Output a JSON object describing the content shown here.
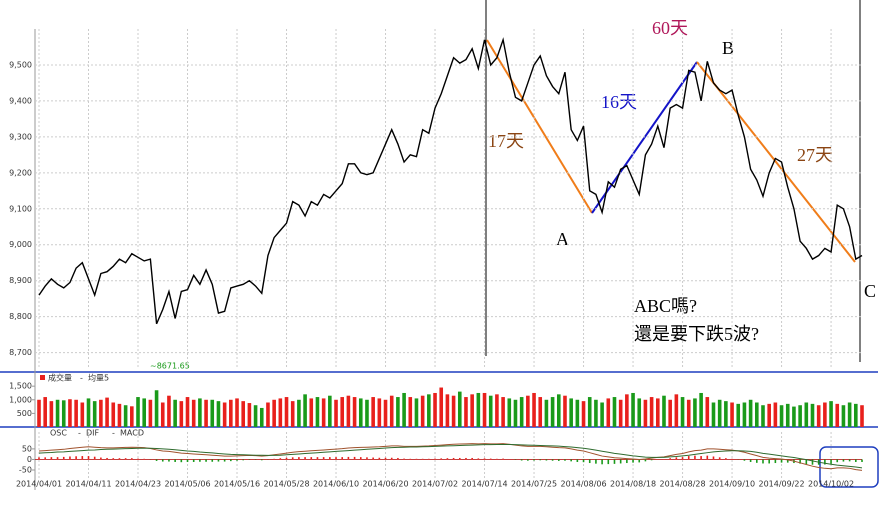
{
  "chart_data": [
    {
      "type": "line",
      "color": "#000000",
      "categories": [
        "2014/04/01",
        null,
        null,
        null,
        null,
        null,
        null,
        null,
        "2014/04/11",
        null,
        null,
        null,
        null,
        null,
        null,
        null,
        "2014/04/23",
        null,
        null,
        null,
        null,
        null,
        null,
        null,
        "2014/05/06",
        null,
        null,
        null,
        null,
        null,
        null,
        null,
        "2014/05/16",
        null,
        null,
        null,
        null,
        null,
        null,
        null,
        "2014/05/28",
        null,
        null,
        null,
        null,
        null,
        null,
        null,
        "2014/06/10",
        null,
        null,
        null,
        null,
        null,
        null,
        null,
        "2014/06/20",
        null,
        null,
        null,
        null,
        null,
        null,
        null,
        "2014/07/02",
        null,
        null,
        null,
        null,
        null,
        null,
        null,
        "2014/07/14",
        null,
        null,
        null,
        null,
        null,
        null,
        null,
        "2014/07/25",
        null,
        null,
        null,
        null,
        null,
        null,
        null,
        "2014/08/06",
        null,
        null,
        null,
        null,
        null,
        null,
        null,
        "2014/08/18",
        null,
        null,
        null,
        null,
        null,
        null,
        null,
        "2014/08/28",
        null,
        null,
        null,
        null,
        null,
        null,
        null,
        "2014/09/10",
        null,
        null,
        null,
        null,
        null,
        null,
        null,
        "2014/09/22",
        null,
        null,
        null,
        null,
        null,
        null,
        null,
        "2014/10/02",
        null,
        null,
        null,
        null,
        null
      ],
      "values": [
        8860,
        8885,
        8905,
        8890,
        8880,
        8895,
        8935,
        8950,
        8905,
        8860,
        8920,
        8925,
        8940,
        8960,
        8950,
        8975,
        8965,
        8955,
        8960,
        8780,
        8820,
        8870,
        8795,
        8870,
        8875,
        8915,
        8890,
        8930,
        8890,
        8810,
        8815,
        8880,
        8885,
        8890,
        8900,
        8885,
        8865,
        8970,
        9020,
        9040,
        9060,
        9120,
        9110,
        9080,
        9120,
        9110,
        9140,
        9130,
        9150,
        9170,
        9225,
        9225,
        9200,
        9195,
        9200,
        9240,
        9280,
        9320,
        9280,
        9230,
        9250,
        9245,
        9320,
        9310,
        9380,
        9420,
        9470,
        9520,
        9505,
        9515,
        9545,
        9490,
        9570,
        9500,
        9520,
        9570,
        9480,
        9410,
        9400,
        9450,
        9500,
        9525,
        9470,
        9440,
        9420,
        9480,
        9320,
        9290,
        9330,
        9150,
        9140,
        9090,
        9175,
        9160,
        9210,
        9220,
        9180,
        9140,
        9250,
        9280,
        9330,
        9270,
        9380,
        9390,
        9380,
        9485,
        9480,
        9400,
        9510,
        9450,
        9430,
        9420,
        9430,
        9360,
        9300,
        9210,
        9180,
        9135,
        9200,
        9240,
        9230,
        9160,
        9100,
        9010,
        8990,
        8960,
        8970,
        8990,
        8980,
        9110,
        9100,
        9050,
        8960,
        8970
      ],
      "ylim": [
        8660,
        9600
      ],
      "yticks": [
        {
          "value": 8700,
          "label": "8,700"
        },
        {
          "value": 8800,
          "label": "8,800"
        },
        {
          "value": 8900,
          "label": "8,900"
        },
        {
          "value": 9000,
          "label": "9,000"
        },
        {
          "value": 9100,
          "label": "9,100"
        },
        {
          "value": 9200,
          "label": "9,200"
        },
        {
          "value": 9300,
          "label": "9,300"
        },
        {
          "value": 9400,
          "label": "9,400"
        },
        {
          "value": 9500,
          "label": "9,500"
        }
      ],
      "grid": true,
      "low_label": "~8671.65",
      "annotations": [
        "17天",
        "16天",
        "60天",
        "27天",
        "A",
        "B",
        "C",
        "ABC嗎?",
        "還是要下跌5波?"
      ]
    },
    {
      "type": "bar",
      "legend": [
        "成交量",
        "均量5"
      ],
      "up_color": "#e8201c",
      "down_color": "#1a9a1a",
      "values": [
        1000,
        1100,
        950,
        1000,
        980,
        1020,
        1000,
        900,
        1050,
        950,
        1000,
        1080,
        900,
        850,
        800,
        760,
        1100,
        1050,
        1000,
        1350,
        900,
        1150,
        1000,
        950,
        1100,
        1000,
        1050,
        1000,
        1000,
        950,
        900,
        1000,
        1050,
        950,
        880,
        800,
        700,
        900,
        1000,
        1050,
        1100,
        950,
        1000,
        1200,
        1050,
        1100,
        1050,
        1150,
        1000,
        1100,
        1150,
        1100,
        1050,
        1000,
        1100,
        1050,
        1000,
        1150,
        1100,
        1250,
        1100,
        1050,
        1150,
        1200,
        1250,
        1450,
        1200,
        1150,
        1300,
        1100,
        1200,
        1250,
        1250,
        1150,
        1200,
        1100,
        1050,
        1000,
        1100,
        1150,
        1250,
        1100,
        1000,
        1100,
        1200,
        1150,
        1050,
        1000,
        950,
        1100,
        1000,
        900,
        1050,
        1100,
        1000,
        1200,
        1250,
        1050,
        1000,
        1100,
        1050,
        1150,
        1000,
        1200,
        1100,
        1000,
        1050,
        1250,
        1100,
        900,
        1000,
        950,
        900,
        850,
        900,
        1000,
        900,
        800,
        850,
        900,
        800,
        850,
        750,
        800,
        900,
        850,
        800,
        900,
        950,
        850,
        800,
        900,
        850,
        800
      ],
      "ylim": [
        0,
        1800
      ],
      "yticks": [
        500,
        {
          "value": 1000,
          "label": "1,000"
        },
        {
          "value": 1500,
          "label": "1,500"
        }
      ]
    },
    {
      "type": "macd",
      "legend": [
        "OSC",
        "DIF",
        "MACD"
      ],
      "up_color": "#e8201c",
      "down_color": "#1a9a1a",
      "series": [
        {
          "name": "OSC",
          "values": [
            10,
            10,
            11,
            11,
            12,
            14,
            15,
            16,
            16,
            13,
            9,
            7,
            6,
            6,
            6,
            6,
            4,
            3,
            -1,
            -7,
            -10,
            -10,
            -12,
            -13,
            -12,
            -12,
            -11,
            -11,
            -11,
            -10,
            -10,
            -8,
            -6,
            -4,
            -2,
            -2,
            -4,
            -1,
            3,
            6,
            8,
            10,
            11,
            11,
            11,
            11,
            11,
            11,
            11,
            11,
            12,
            12,
            11,
            10,
            9,
            8,
            8,
            8,
            7,
            4,
            3,
            3,
            3,
            3,
            4,
            5,
            6,
            7,
            7,
            7,
            7,
            5,
            5,
            4,
            3,
            4,
            1,
            -2,
            -5,
            -6,
            -5,
            -4,
            -5,
            -6,
            -7,
            -6,
            -9,
            -12,
            -13,
            -17,
            -20,
            -23,
            -22,
            -21,
            -19,
            -17,
            -15,
            -14,
            -9,
            -4,
            0,
            2,
            6,
            10,
            11,
            16,
            18,
            16,
            18,
            14,
            10,
            6,
            3,
            -1,
            -6,
            -12,
            -16,
            -19,
            -19,
            -17,
            -15,
            -15,
            -17,
            -20,
            -23,
            -25,
            -25,
            -24,
            -21,
            -13,
            -10,
            -9,
            -12,
            -12
          ]
        },
        {
          "name": "DIF",
          "color": "#a0522d",
          "values": [
            40,
            42,
            44,
            46,
            48,
            52,
            55,
            58,
            60,
            58,
            56,
            55,
            55,
            56,
            57,
            58,
            57,
            56,
            52,
            45,
            40,
            38,
            34,
            30,
            28,
            26,
            24,
            22,
            20,
            18,
            16,
            16,
            17,
            18,
            19,
            18,
            16,
            18,
            22,
            26,
            30,
            34,
            37,
            39,
            41,
            43,
            45,
            47,
            49,
            51,
            54,
            56,
            57,
            58,
            59,
            60,
            62,
            64,
            64,
            62,
            62,
            62,
            63,
            64,
            66,
            68,
            70,
            72,
            73,
            74,
            75,
            74,
            75,
            74,
            74,
            75,
            72,
            68,
            64,
            62,
            62,
            62,
            60,
            58,
            56,
            55,
            50,
            44,
            40,
            32,
            24,
            16,
            12,
            8,
            6,
            4,
            2,
            0,
            2,
            6,
            10,
            12,
            18,
            24,
            28,
            36,
            42,
            44,
            50,
            50,
            48,
            46,
            44,
            40,
            34,
            26,
            18,
            10,
            6,
            4,
            2,
            -2,
            -8,
            -16,
            -24,
            -32,
            -38,
            -42,
            -44,
            -40,
            -40,
            -42,
            -48,
            -52
          ]
        },
        {
          "name": "MACD",
          "color": "#2e6b2e",
          "values": [
            30,
            32,
            33,
            35,
            36,
            38,
            40,
            42,
            44,
            45,
            47,
            48,
            49,
            50,
            51,
            52,
            53,
            53,
            53,
            52,
            50,
            48,
            46,
            43,
            40,
            38,
            35,
            33,
            31,
            28,
            26,
            24,
            23,
            22,
            21,
            20,
            20,
            19,
            19,
            20,
            22,
            24,
            26,
            28,
            30,
            32,
            34,
            36,
            38,
            40,
            42,
            44,
            46,
            48,
            50,
            52,
            54,
            56,
            57,
            58,
            59,
            59,
            60,
            61,
            62,
            63,
            64,
            65,
            66,
            67,
            68,
            69,
            70,
            70,
            71,
            71,
            71,
            70,
            69,
            68,
            67,
            66,
            65,
            64,
            63,
            61,
            59,
            56,
            53,
            49,
            44,
            39,
            34,
            29,
            25,
            21,
            17,
            14,
            11,
            10,
            10,
            10,
            12,
            14,
            17,
            20,
            24,
            28,
            32,
            36,
            38,
            40,
            41,
            41,
            40,
            38,
            34,
            29,
            25,
            21,
            17,
            13,
            9,
            4,
            -1,
            -7,
            -13,
            -18,
            -23,
            -27,
            -30,
            -33,
            -36,
            -40
          ]
        }
      ],
      "ylim": [
        -140,
        130
      ],
      "yticks": [
        -50,
        0,
        50
      ]
    }
  ]
}
